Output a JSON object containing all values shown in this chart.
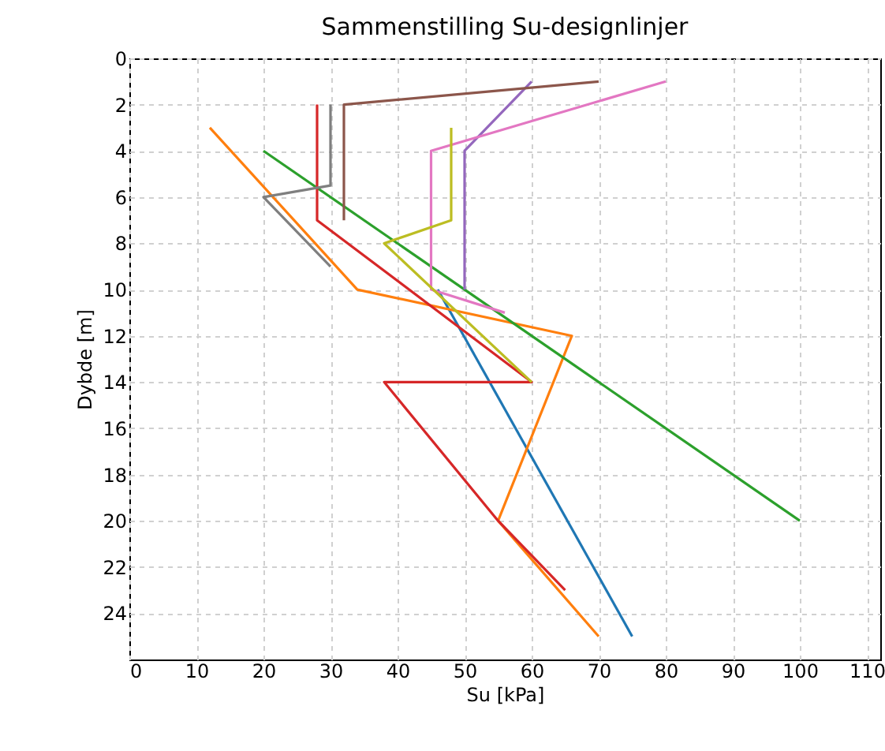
{
  "chart_data": {
    "type": "line",
    "title": "Sammenstilling Su-designlinjer",
    "xlabel": "Su [kPa]",
    "ylabel": "Dybde [m]",
    "xlim": [
      0,
      112
    ],
    "xticks": [
      0,
      10,
      20,
      30,
      40,
      50,
      60,
      70,
      80,
      90,
      100,
      110
    ],
    "ylim": [
      26,
      0
    ],
    "yticks": [
      0,
      2,
      4,
      6,
      8,
      10,
      12,
      14,
      16,
      18,
      20,
      22,
      24
    ],
    "grid": true,
    "line_style": "solid",
    "series": [
      {
        "color": "#1f77b4",
        "x": [
          46,
          75
        ],
        "values": [
          10,
          25
        ]
      },
      {
        "color": "#ff7f0e",
        "x": [
          12,
          34,
          66,
          55,
          70
        ],
        "values": [
          3,
          10,
          12,
          20,
          25
        ]
      },
      {
        "color": "#2ca02c",
        "x": [
          20,
          100
        ],
        "values": [
          4,
          20
        ]
      },
      {
        "color": "#d62728",
        "x": [
          28,
          28,
          60,
          38,
          55,
          65
        ],
        "values": [
          2,
          7,
          14,
          14,
          20,
          23
        ]
      },
      {
        "color": "#9467bd",
        "x": [
          60,
          50,
          50
        ],
        "values": [
          1,
          4,
          10
        ]
      },
      {
        "color": "#8c564b",
        "x": [
          70,
          32,
          32
        ],
        "values": [
          1,
          2,
          7
        ]
      },
      {
        "color": "#e377c2",
        "x": [
          80,
          45,
          45,
          56
        ],
        "values": [
          1,
          4,
          10,
          11
        ]
      },
      {
        "color": "#7f7f7f",
        "x": [
          30,
          30,
          20,
          30
        ],
        "values": [
          2,
          5.5,
          6,
          9
        ]
      },
      {
        "color": "#bcbd22",
        "x": [
          48,
          48,
          38,
          60
        ],
        "values": [
          3,
          7,
          8,
          14
        ]
      }
    ]
  }
}
